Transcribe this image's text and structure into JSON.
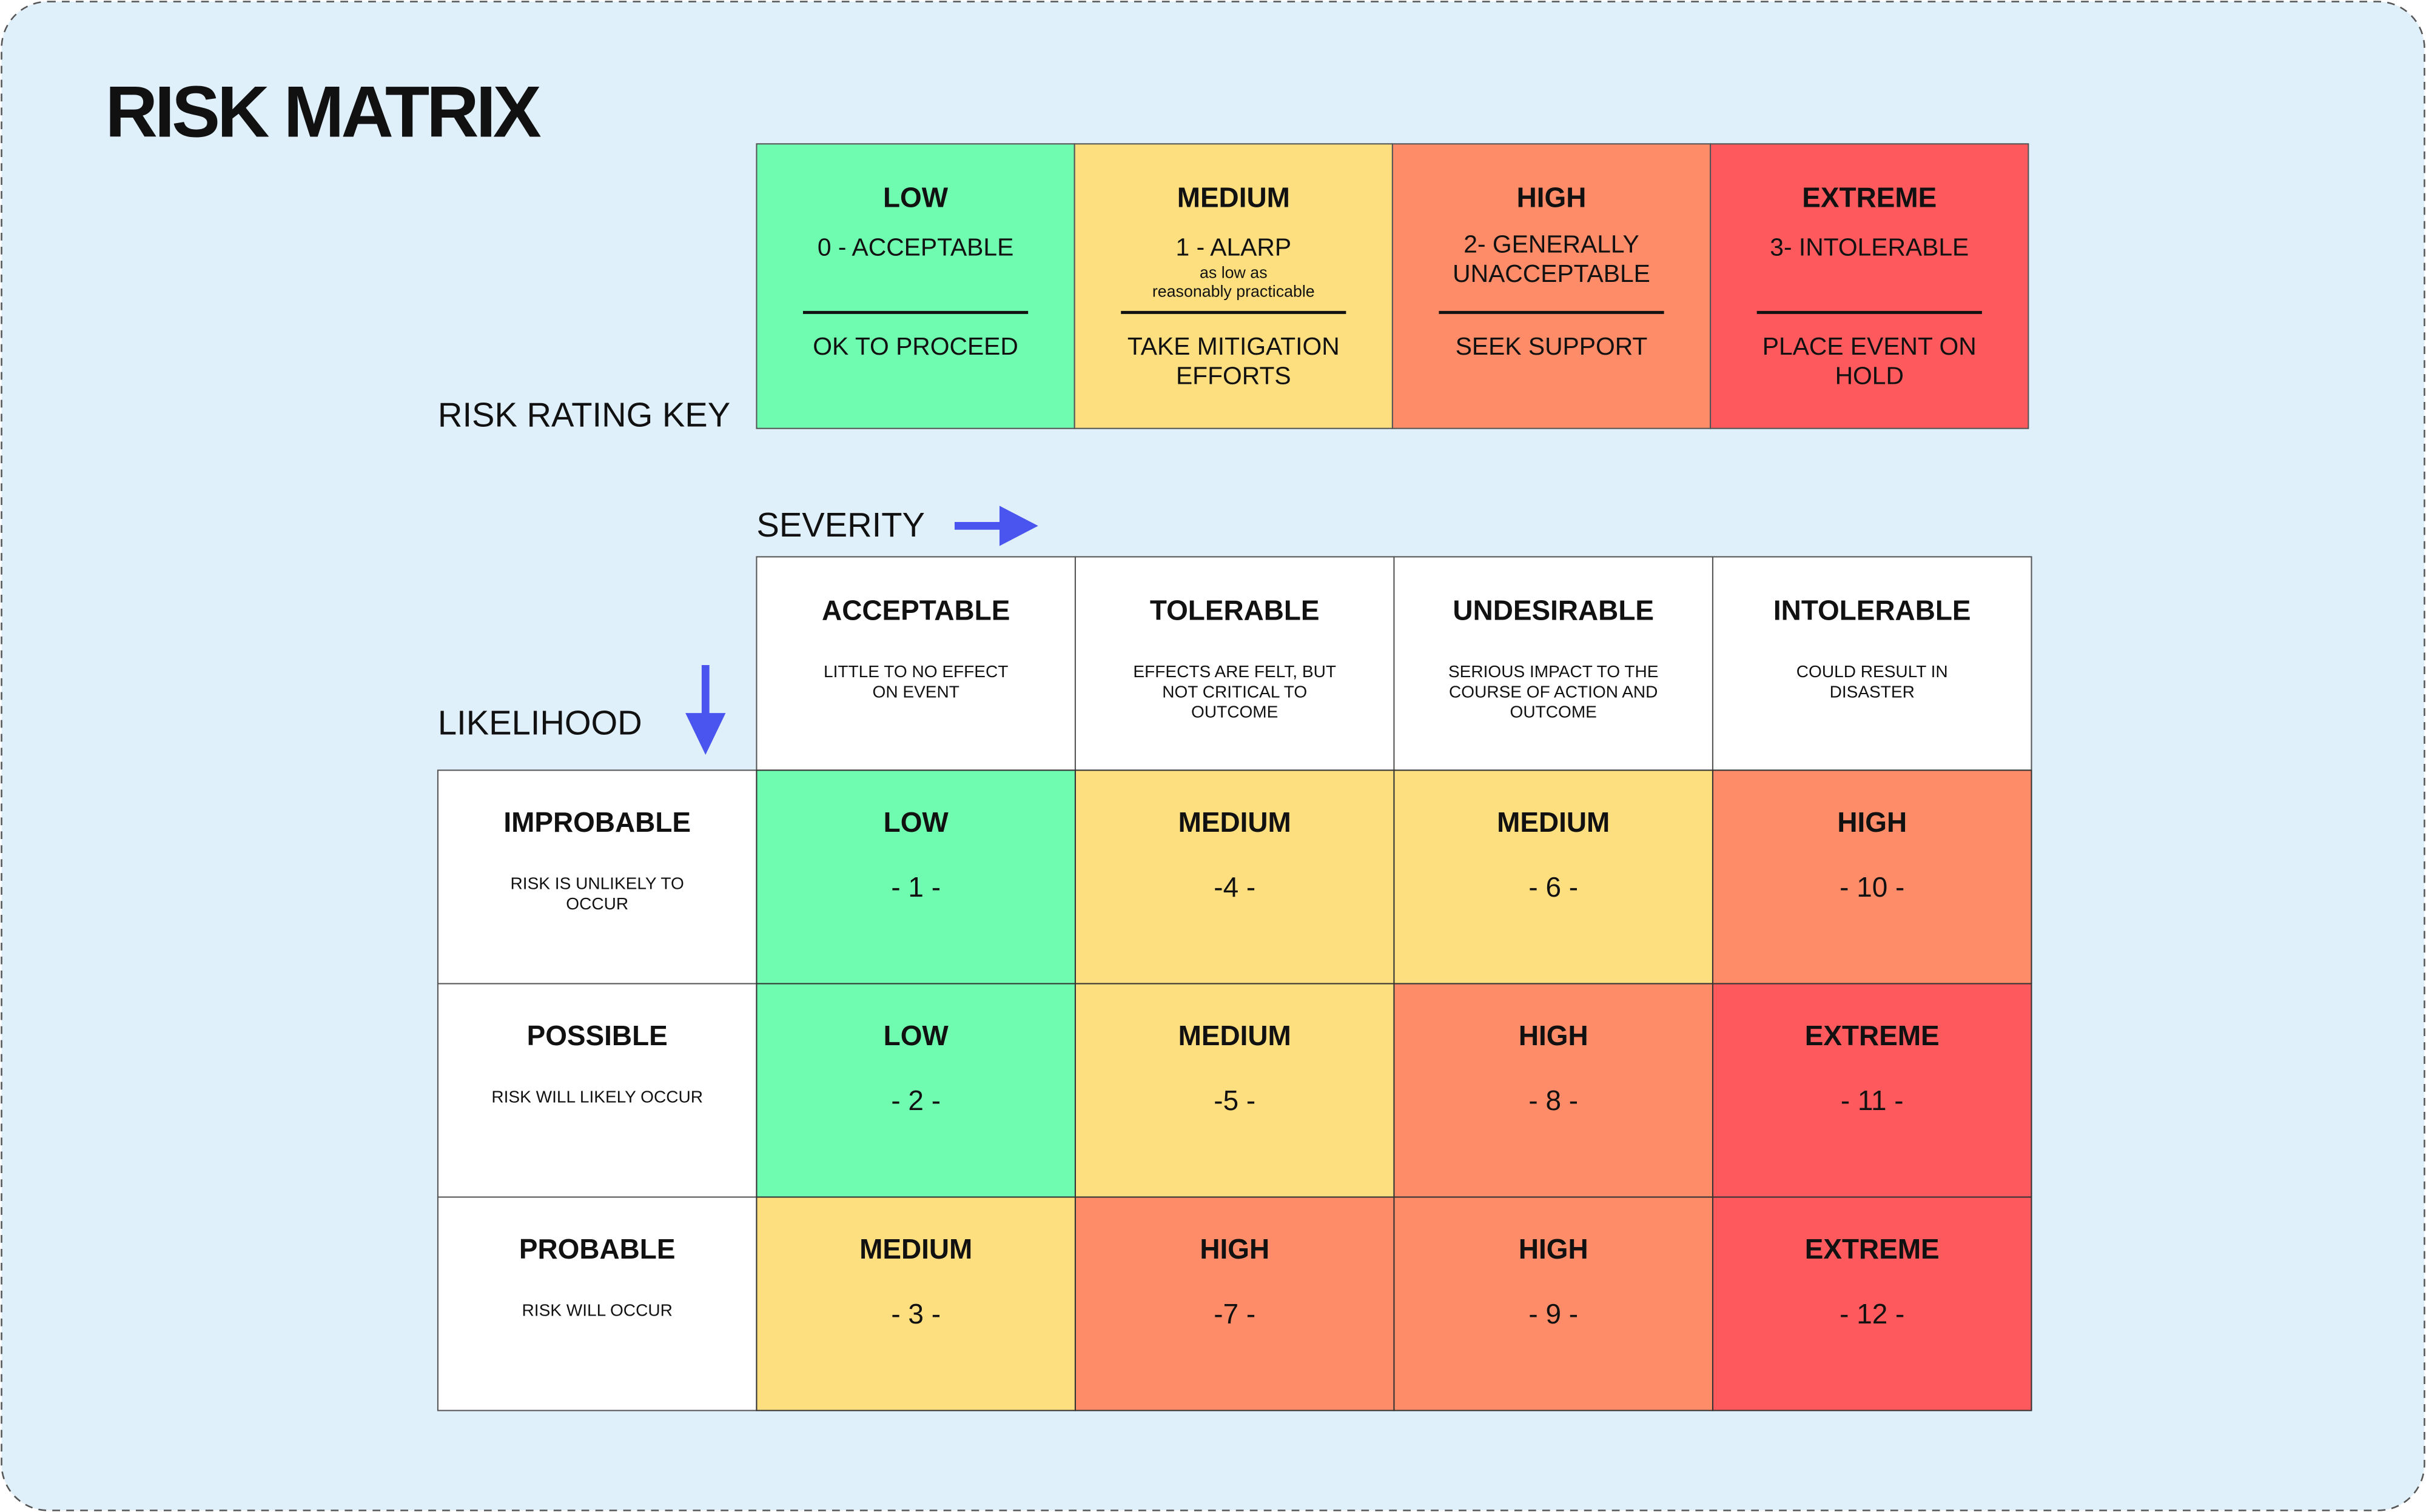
{
  "title": "RISK MATRIX",
  "key": {
    "label": "RISK RATING KEY",
    "items": [
      {
        "level": "LOW",
        "color": "#6ffbb0",
        "rating": [
          "0 - ACCEPTABLE"
        ],
        "note": [],
        "action": [
          "OK TO PROCEED"
        ]
      },
      {
        "level": "MEDIUM",
        "color": "#fddf80",
        "rating": [
          "1 - ALARP"
        ],
        "note": [
          "as low as",
          "reasonably practicable"
        ],
        "action": [
          "TAKE MITIGATION",
          "EFFORTS"
        ]
      },
      {
        "level": "HIGH",
        "color": "#fe8c68",
        "rating": [
          "2- GENERALLY",
          "UNACCEPTABLE"
        ],
        "note": [],
        "action": [
          "SEEK SUPPORT"
        ]
      },
      {
        "level": "EXTREME",
        "color": "#fe5a5e",
        "rating": [
          "3- INTOLERABLE"
        ],
        "note": [],
        "action": [
          "PLACE EVENT ON",
          "HOLD"
        ]
      }
    ]
  },
  "severity_label": "SEVERITY",
  "likelihood_label": "LIKELIHOOD",
  "columns": [
    {
      "title": "ACCEPTABLE",
      "desc": [
        "LITTLE TO NO EFFECT",
        "ON EVENT"
      ]
    },
    {
      "title": "TOLERABLE",
      "desc": [
        "EFFECTS ARE FELT, BUT",
        "NOT CRITICAL TO",
        "OUTCOME"
      ]
    },
    {
      "title": "UNDESIRABLE",
      "desc": [
        "SERIOUS IMPACT TO THE",
        "COURSE OF ACTION AND",
        "OUTCOME"
      ]
    },
    {
      "title": "INTOLERABLE",
      "desc": [
        "COULD RESULT IN",
        "DISASTER"
      ]
    }
  ],
  "rows": [
    {
      "title": "IMPROBABLE",
      "desc": [
        "RISK IS UNLIKELY TO",
        "OCCUR"
      ],
      "cells": [
        {
          "level": "LOW",
          "score": "- 1 -"
        },
        {
          "level": "MEDIUM",
          "score": "-4 -"
        },
        {
          "level": "MEDIUM",
          "score": "- 6 -"
        },
        {
          "level": "HIGH",
          "score": "- 10 -"
        }
      ]
    },
    {
      "title": "POSSIBLE",
      "desc": [
        "RISK WILL LIKELY OCCUR"
      ],
      "cells": [
        {
          "level": "LOW",
          "score": "- 2 -"
        },
        {
          "level": "MEDIUM",
          "score": "-5 -"
        },
        {
          "level": "HIGH",
          "score": "- 8 -"
        },
        {
          "level": "EXTREME",
          "score": "- 11 -"
        }
      ]
    },
    {
      "title": "PROBABLE",
      "desc": [
        "RISK WILL OCCUR"
      ],
      "cells": [
        {
          "level": "MEDIUM",
          "score": "- 3 -"
        },
        {
          "level": "HIGH",
          "score": "-7 -"
        },
        {
          "level": "HIGH",
          "score": "- 9 -"
        },
        {
          "level": "EXTREME",
          "score": "- 12 -"
        }
      ]
    }
  ]
}
